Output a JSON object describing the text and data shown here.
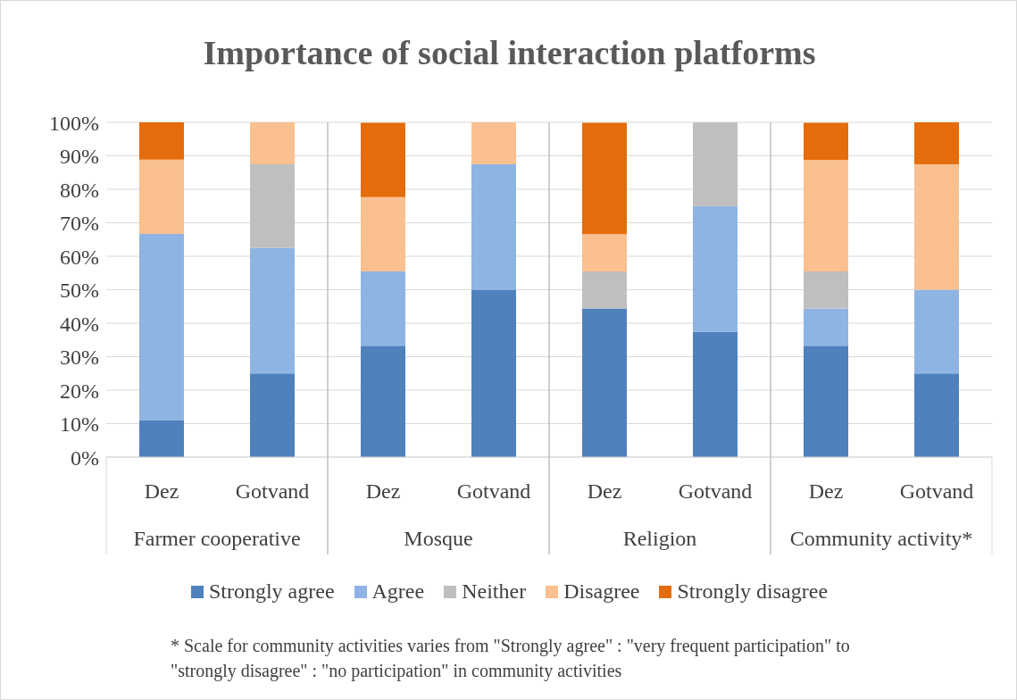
{
  "chart_data": {
    "type": "bar",
    "stacked": true,
    "title": "Importance of social interaction platforms",
    "categories": [
      "Dez",
      "Gotvand",
      "Dez",
      "Gotvand",
      "Dez",
      "Gotvand",
      "Dez",
      "Gotvand"
    ],
    "series": [
      {
        "name": "Strongly agree",
        "color": "#4f81bd",
        "values": [
          11.1,
          25,
          33.3,
          50,
          44.4,
          37.5,
          33.3,
          25
        ]
      },
      {
        "name": "Agree",
        "color": "#8eb4e3",
        "values": [
          55.6,
          37.5,
          22.2,
          37.5,
          0,
          37.5,
          11.1,
          25
        ]
      },
      {
        "name": "Neither",
        "color": "#bfbfbf",
        "values": [
          0,
          25,
          0,
          0,
          11.1,
          25,
          11.1,
          0
        ]
      },
      {
        "name": "Disagree",
        "color": "#fac090",
        "values": [
          22.2,
          12.5,
          22.2,
          12.5,
          11.1,
          0,
          33.3,
          37.5
        ]
      },
      {
        "name": "Strongly disagree",
        "color": "#e46c0a",
        "values": [
          11.1,
          0,
          22.2,
          0,
          33.3,
          0,
          11.1,
          12.5
        ]
      }
    ],
    "ylim": [
      0,
      100
    ],
    "yticks": [
      {
        "value": 0,
        "label": "0%"
      },
      {
        "value": 10,
        "label": "10%"
      },
      {
        "value": 20,
        "label": "20%"
      },
      {
        "value": 30,
        "label": "30%"
      },
      {
        "value": 40,
        "label": "40%"
      },
      {
        "value": 50,
        "label": "50%"
      },
      {
        "value": 60,
        "label": "60%"
      },
      {
        "value": 70,
        "label": "70%"
      },
      {
        "value": 80,
        "label": "80%"
      },
      {
        "value": 90,
        "label": "90%"
      },
      {
        "value": 100,
        "label": "100%"
      }
    ],
    "grid": "y",
    "legend": "bottom",
    "annotations": [
      "Farmer cooperative",
      "Mosque",
      "Religion",
      "Community activity*",
      "* Scale for community activities varies from \"Strongly agree\" : \"very frequent participation\" to \"strongly disagree\" : \"no participation\" in community activities"
    ]
  }
}
